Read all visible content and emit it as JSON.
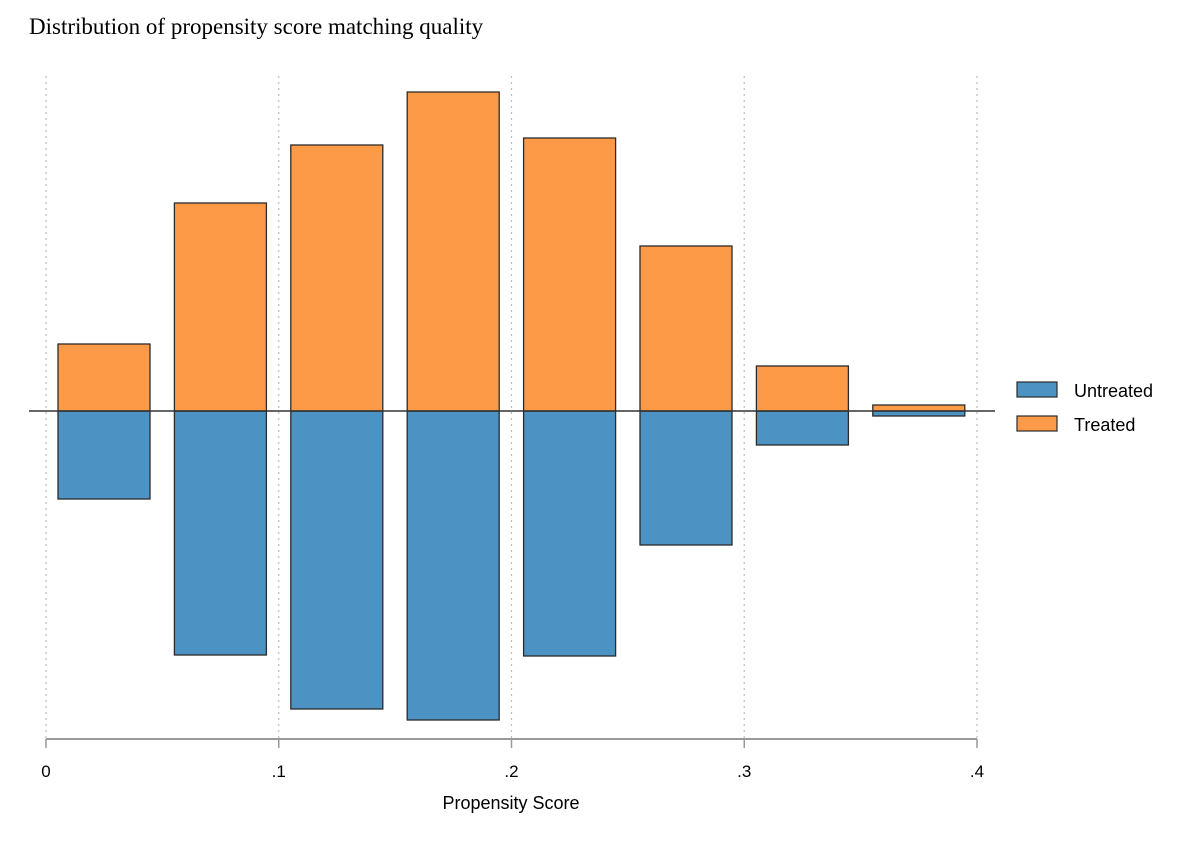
{
  "chart_data": {
    "type": "bar",
    "title": "Distribution of propensity score matching quality",
    "xlabel": "Propensity Score",
    "ylabel": "",
    "xlim": [
      0,
      0.4
    ],
    "ylim": [
      -3.3,
      3.3
    ],
    "x_ticks": [
      0,
      0.1,
      0.2,
      0.3,
      0.4
    ],
    "x_tick_labels": [
      "0",
      ".1",
      ".2",
      ".3",
      ".4"
    ],
    "bin_width": 0.04,
    "bin_centers": [
      0.025,
      0.075,
      0.125,
      0.175,
      0.225,
      0.275,
      0.325,
      0.375
    ],
    "series": [
      {
        "name": "Untreated",
        "direction": "down",
        "color": "#4c92c3",
        "values": [
          0.88,
          2.44,
          2.98,
          3.09,
          2.45,
          1.34,
          0.34,
          0.05
        ]
      },
      {
        "name": "Treated",
        "direction": "up",
        "color": "#fd9a47",
        "values": [
          0.67,
          2.08,
          2.66,
          3.19,
          2.73,
          1.65,
          0.45,
          0.06
        ]
      }
    ],
    "legend": [
      "Untreated",
      "Treated"
    ],
    "legend_position": "right",
    "grid": "vertical dotted"
  }
}
